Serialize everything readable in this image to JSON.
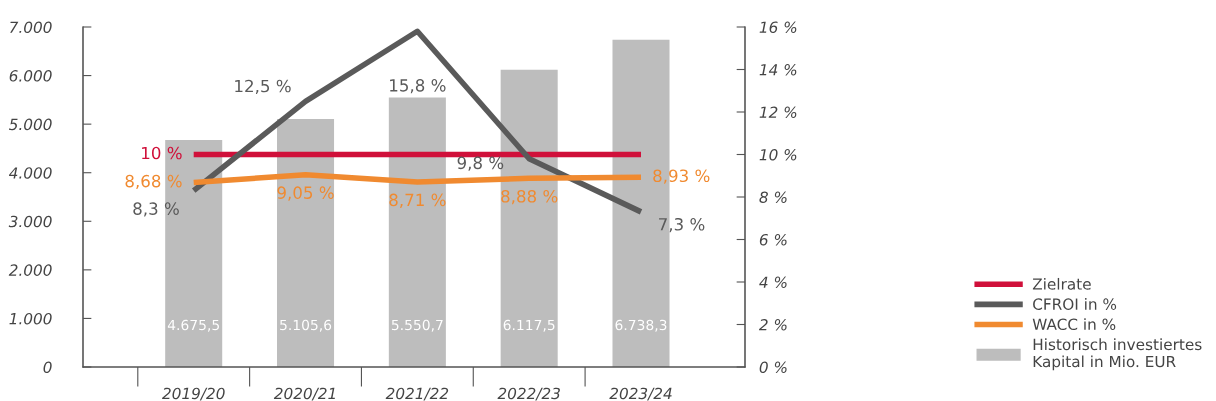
{
  "chart_data": {
    "type": "bar",
    "categories": [
      "2019/20",
      "2020/21",
      "2021/22",
      "2022/23",
      "2023/24"
    ],
    "ylim": [
      0,
      7000
    ],
    "yticks": [
      {
        "value": 0,
        "label": "0"
      },
      {
        "value": 1000,
        "label": "1.000"
      },
      {
        "value": 2000,
        "label": "2.000"
      },
      {
        "value": 3000,
        "label": "3.000"
      },
      {
        "value": 4000,
        "label": "4.000"
      },
      {
        "value": 5000,
        "label": "5.000"
      },
      {
        "value": 6000,
        "label": "6.000"
      },
      {
        "value": 7000,
        "label": "7.000"
      }
    ],
    "y2lim": [
      0,
      16
    ],
    "y2ticks": [
      {
        "value": 0,
        "label": "0 %"
      },
      {
        "value": 2,
        "label": "2 %"
      },
      {
        "value": 4,
        "label": "4 %"
      },
      {
        "value": 6,
        "label": "6 %"
      },
      {
        "value": 8,
        "label": "8 %"
      },
      {
        "value": 10,
        "label": "10 %"
      },
      {
        "value": 12,
        "label": "12 %"
      },
      {
        "value": 14,
        "label": "14 %"
      },
      {
        "value": 16,
        "label": "16 %"
      }
    ],
    "grid": false,
    "legend": "bottom right",
    "marker": "none",
    "line_style": "solid",
    "series": [
      {
        "name": "Historisch investiertes Kapital in Mio. EUR",
        "type": "bar",
        "color": "#bdbdbd",
        "values": [
          4675.5,
          5105.6,
          5550.7,
          6117.5,
          6738.3
        ],
        "value_labels": [
          "4.675,5",
          "5.105,6",
          "5.550,7",
          "6.117,5",
          "6.738,3"
        ]
      },
      {
        "name": "Zielrate",
        "type": "line",
        "axis": "y2",
        "color": "#d0103a",
        "values": [
          10,
          10,
          10,
          10,
          10
        ],
        "value_labels": [
          "10 %",
          null,
          null,
          null,
          null
        ]
      },
      {
        "name": "CFROI in %",
        "type": "line",
        "axis": "y2",
        "color": "#5a5a5a",
        "values": [
          8.3,
          12.5,
          15.8,
          9.8,
          7.3
        ],
        "value_labels": [
          "8,3 %",
          "12,5 %",
          "15,8 %",
          "9,8 %",
          "7,3 %"
        ]
      },
      {
        "name": "WACC in %",
        "type": "line",
        "axis": "y2",
        "color": "#f08a30",
        "values": [
          8.68,
          9.05,
          8.71,
          8.88,
          8.93
        ],
        "value_labels": [
          "8,68 %",
          "9,05 %",
          "8,71 %",
          "8,88 %",
          "8,93 %"
        ]
      }
    ]
  }
}
